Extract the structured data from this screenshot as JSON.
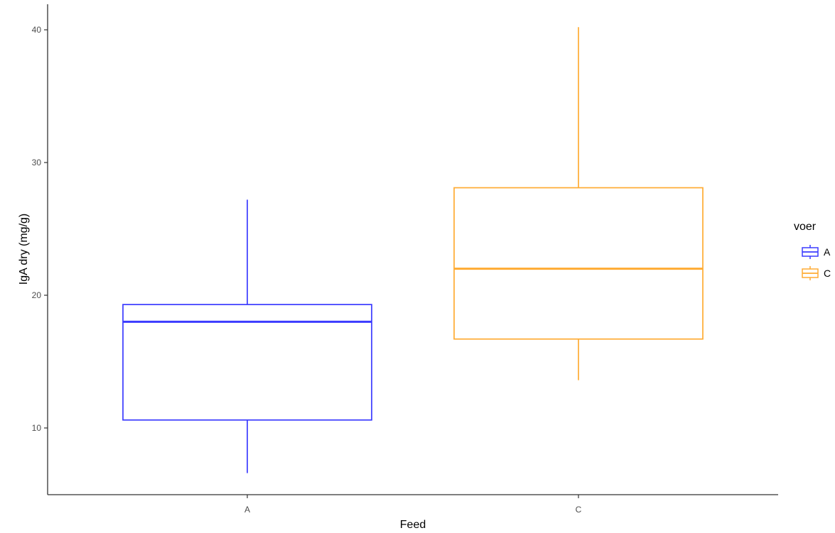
{
  "chart_data": {
    "type": "boxplot",
    "title": "",
    "xlabel": "Feed",
    "ylabel": "IgA dry (mg/g)",
    "categories": [
      "A",
      "C"
    ],
    "y_ticks": [
      10,
      20,
      30,
      40
    ],
    "y_tick_labels": [
      "10",
      "20",
      "30",
      "40"
    ],
    "ylim": [
      5,
      41.5
    ],
    "grid": false,
    "legend": {
      "title": "voer",
      "placement": "right",
      "entries": [
        "A",
        "C"
      ]
    },
    "series": [
      {
        "category": "A",
        "color": "#3b3bff",
        "lower_whisker": 6.6,
        "q1": 10.6,
        "median": 18.0,
        "q3": 19.3,
        "upper_whisker": 27.2
      },
      {
        "category": "C",
        "color": "#ffab33",
        "lower_whisker": 13.6,
        "q1": 16.7,
        "median": 22.0,
        "q3": 28.1,
        "upper_whisker": 40.2
      }
    ]
  }
}
